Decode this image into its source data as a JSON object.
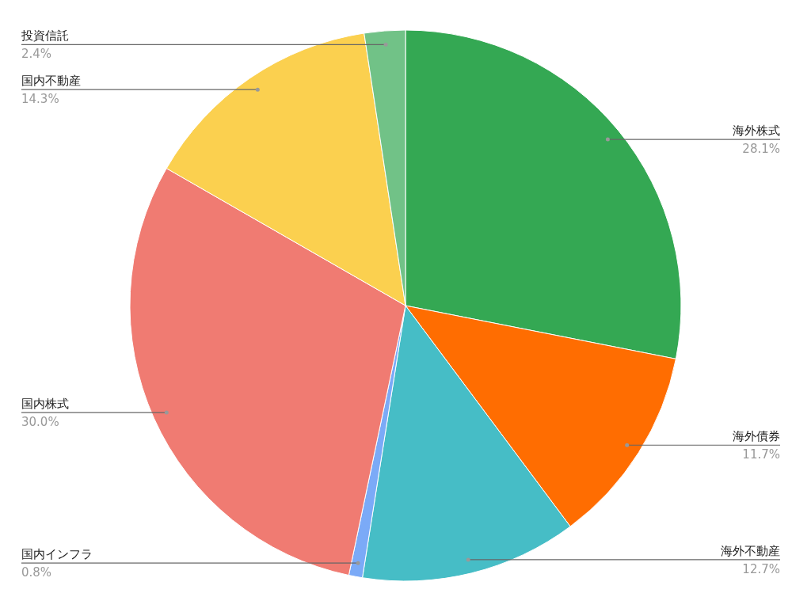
{
  "chart_data": {
    "type": "pie",
    "categories": [
      "海外株式",
      "海外債券",
      "海外不動産",
      "国内インフラ",
      "国内株式",
      "国内不動産",
      "投資信託"
    ],
    "values": [
      28.1,
      11.7,
      12.7,
      0.8,
      30.0,
      14.3,
      2.4
    ],
    "value_labels": [
      "28.1%",
      "11.7%",
      "12.7%",
      "0.8%",
      "30.0%",
      "14.3%",
      "2.4%"
    ],
    "colors": [
      "#34a853",
      "#ff6d01",
      "#46bdc6",
      "#7baaf7",
      "#f07b72",
      "#fbd04f",
      "#71c287"
    ]
  }
}
